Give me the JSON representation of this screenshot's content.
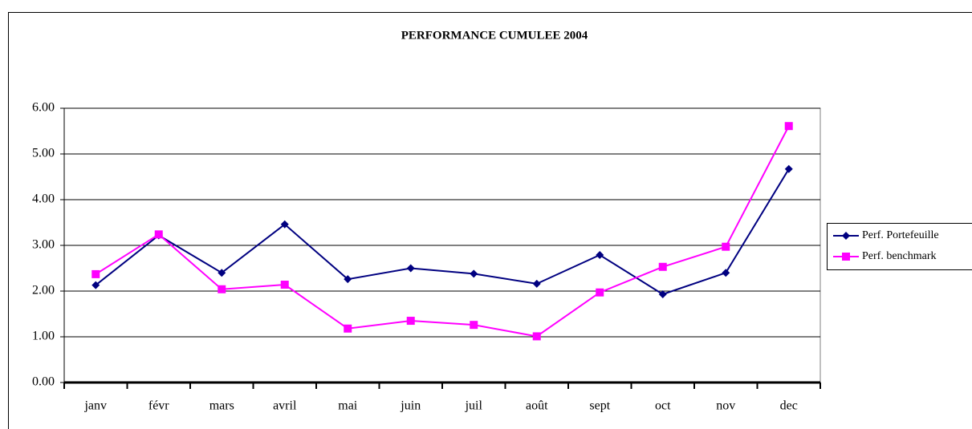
{
  "chart_data": {
    "type": "line",
    "title": "PERFORMANCE CUMULEE  2004",
    "categories": [
      "janv",
      "févr",
      "mars",
      "avril",
      "mai",
      "juin",
      "juil",
      "août",
      "sept",
      "oct",
      "nov",
      "dec"
    ],
    "series": [
      {
        "name": "Perf. Portefeuille",
        "color": "#000080",
        "marker": "diamond",
        "values": [
          2.13,
          3.22,
          2.4,
          3.46,
          2.26,
          2.5,
          2.38,
          2.16,
          2.79,
          1.93,
          2.4,
          4.67
        ]
      },
      {
        "name": "Perf. benchmark",
        "color": "#ff00ff",
        "marker": "square",
        "values": [
          2.37,
          3.24,
          2.04,
          2.14,
          1.18,
          1.35,
          1.26,
          1.01,
          1.97,
          2.53,
          2.97,
          5.61
        ]
      }
    ],
    "ylim": [
      0,
      6
    ],
    "yticks": [
      {
        "value": 0,
        "label": "0.00"
      },
      {
        "value": 1,
        "label": "1.00"
      },
      {
        "value": 2,
        "label": "2.00"
      },
      {
        "value": 3,
        "label": "3.00"
      },
      {
        "value": 4,
        "label": "4.00"
      },
      {
        "value": 5,
        "label": "5.00"
      },
      {
        "value": 6,
        "label": "6.00"
      }
    ],
    "grid": true,
    "legend": "right"
  }
}
